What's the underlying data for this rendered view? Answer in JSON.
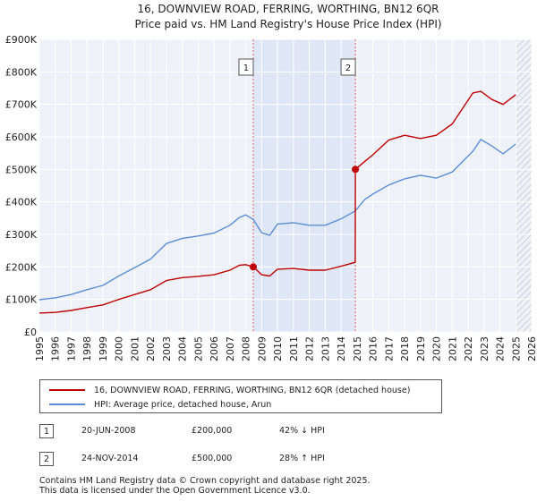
{
  "chart_data": {
    "type": "line",
    "title": "16, DOWNVIEW ROAD, FERRING, WORTHING, BN12 6QR",
    "subtitle": "Price paid vs. HM Land Registry's House Price Index (HPI)",
    "xlim": [
      1995,
      2026
    ],
    "ylim": [
      0,
      900000
    ],
    "x_ticks": [
      1995,
      1996,
      1997,
      1998,
      1999,
      2000,
      2001,
      2002,
      2003,
      2004,
      2005,
      2006,
      2007,
      2008,
      2009,
      2010,
      2011,
      2012,
      2013,
      2014,
      2015,
      2016,
      2017,
      2018,
      2019,
      2020,
      2021,
      2022,
      2023,
      2024,
      2025,
      2026
    ],
    "y_ticks": [
      {
        "value": 0,
        "label": "£0"
      },
      {
        "value": 100000,
        "label": "£100K"
      },
      {
        "value": 200000,
        "label": "£200K"
      },
      {
        "value": 300000,
        "label": "£300K"
      },
      {
        "value": 400000,
        "label": "£400K"
      },
      {
        "value": 500000,
        "label": "£500K"
      },
      {
        "value": 600000,
        "label": "£600K"
      },
      {
        "value": 700000,
        "label": "£700K"
      },
      {
        "value": 800000,
        "label": "£800K"
      },
      {
        "value": 900000,
        "label": "£900K"
      }
    ],
    "series": [
      {
        "name": "16, DOWNVIEW ROAD, FERRING, WORTHING, BN12 6QR (detached house)",
        "color": "#c00000",
        "x": [
          1995,
          1996,
          1997,
          1998,
          1999,
          2000,
          2001,
          2002,
          2003,
          2004,
          2005,
          2006,
          2007,
          2007.6,
          2008.0,
          2008.47,
          2009.0,
          2009.5,
          2010,
          2011,
          2012,
          2013,
          2014,
          2014.89,
          2014.9,
          2015.5,
          2016,
          2017,
          2018,
          2019,
          2020,
          2021,
          2022.3,
          2022.8,
          2023.5,
          2024.2,
          2025.0
        ],
        "y": [
          58000,
          60000,
          66000,
          75000,
          83000,
          100000,
          115000,
          130000,
          158000,
          167000,
          171000,
          176000,
          190000,
          205000,
          207000,
          200000,
          176000,
          172000,
          193000,
          195000,
          190000,
          190000,
          202000,
          214000,
          500000,
          525000,
          545000,
          590000,
          605000,
          595000,
          605000,
          640000,
          735000,
          740000,
          715000,
          700000,
          730000
        ]
      },
      {
        "name": "HPI: Average price, detached house, Arun",
        "color": "#5b8ed6",
        "x": [
          1995,
          1996,
          1997,
          1998,
          1999,
          2000,
          2001,
          2002,
          2003,
          2004,
          2005,
          2006,
          2007,
          2007.6,
          2008.0,
          2008.47,
          2009.0,
          2009.5,
          2010,
          2011,
          2012,
          2013,
          2014,
          2014.89,
          2015.5,
          2016,
          2017,
          2018,
          2019,
          2020,
          2021,
          2022.3,
          2022.8,
          2023.5,
          2024.2,
          2025.0
        ],
        "y": [
          99000,
          105000,
          115000,
          130000,
          143000,
          172000,
          198000,
          224000,
          272000,
          288000,
          295000,
          304000,
          328000,
          352000,
          360000,
          346000,
          305000,
          297000,
          332000,
          336000,
          328000,
          328000,
          348000,
          372000,
          408000,
          424000,
          452000,
          471000,
          482000,
          473000,
          492000,
          556000,
          592000,
          572000,
          548000,
          578000
        ]
      }
    ],
    "annotations": [
      {
        "label": "1",
        "x": 2008.47,
        "y": 200000
      },
      {
        "label": "2",
        "x": 2014.9,
        "y": 500000
      }
    ],
    "shaded_ranges": [
      [
        2008.47,
        2014.9
      ]
    ],
    "hatched_from": 2025.0
  },
  "legend": {
    "items": [
      {
        "label": "16, DOWNVIEW ROAD, FERRING, WORTHING, BN12 6QR (detached house)",
        "color": "#c00000"
      },
      {
        "label": "HPI: Average price, detached house, Arun",
        "color": "#5b8ed6"
      }
    ]
  },
  "transactions": [
    {
      "badge": "1",
      "date": "20-JUN-2008",
      "price": "£200,000",
      "hpi": "42% ↓ HPI"
    },
    {
      "badge": "2",
      "date": "24-NOV-2014",
      "price": "£500,000",
      "hpi": "28% ↑ HPI"
    }
  ],
  "footer": {
    "line1": "Contains HM Land Registry data © Crown copyright and database right 2025.",
    "line2": "This data is licensed under the Open Government Licence v3.0."
  }
}
